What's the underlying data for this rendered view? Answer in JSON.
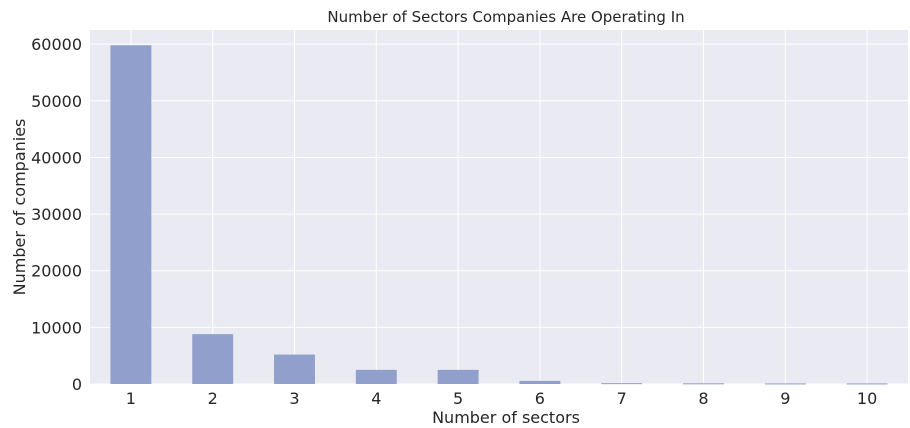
{
  "chart_data": {
    "type": "bar",
    "title": "Number of Sectors Companies Are Operating In",
    "xlabel": "Number of sectors",
    "ylabel": "Number of companies",
    "categories": [
      "1",
      "2",
      "3",
      "4",
      "5",
      "6",
      "7",
      "8",
      "9",
      "10"
    ],
    "values": [
      59800,
      8800,
      5200,
      2500,
      2500,
      550,
      150,
      120,
      100,
      100
    ],
    "ylim": [
      0,
      62500
    ],
    "yticks": [
      0,
      10000,
      20000,
      30000,
      40000,
      50000,
      60000
    ],
    "grid": true,
    "legend": "none",
    "colors": {
      "bar": "#909fcb",
      "background": "#eaeaf2",
      "grid": "#ffffff",
      "text": "#262626"
    }
  }
}
